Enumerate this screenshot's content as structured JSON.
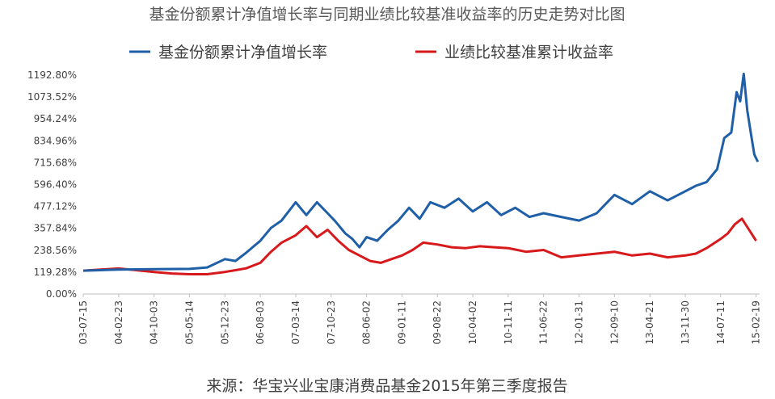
{
  "chart_data": {
    "type": "line",
    "title": "基金份额累计净值增长率与同期业绩比较基准收益率的历史走势对比图",
    "source": "来源：华宝兴业宝康消费品基金2015年第三季度报告",
    "y_ticks": [
      "0.00%",
      "119.28%",
      "238.56%",
      "357.84%",
      "477.12%",
      "596.40%",
      "715.68%",
      "834.96%",
      "954.24%",
      "1073.52%",
      "1192.80%"
    ],
    "ylim": [
      0,
      1192.8
    ],
    "x_ticks": [
      "03-07-15",
      "04-02-23",
      "04-10-03",
      "05-05-14",
      "05-12-23",
      "06-08-03",
      "07-03-14",
      "07-10-23",
      "08-06-02",
      "09-01-11",
      "09-08-22",
      "10-04-02",
      "10-11-11",
      "11-06-22",
      "12-01-31",
      "12-09-10",
      "13-04-21",
      "13-11-30",
      "14-07-11",
      "15-02-19"
    ],
    "xlim": [
      0,
      19.1
    ],
    "legend_position": "top-center",
    "series": [
      {
        "name": "基金份额累计净值增长率",
        "color": "#1f5fa8",
        "x": [
          0,
          1,
          2,
          3,
          3.5,
          4,
          4.3,
          4.6,
          5,
          5.3,
          5.6,
          6,
          6.3,
          6.6,
          6.9,
          7.1,
          7.4,
          7.6,
          7.8,
          8.0,
          8.3,
          8.6,
          8.9,
          9.2,
          9.5,
          9.8,
          10.2,
          10.6,
          11.0,
          11.4,
          11.8,
          12.2,
          12.6,
          13.0,
          13.5,
          14.0,
          14.5,
          15.0,
          15.5,
          16.0,
          16.5,
          17.0,
          17.3,
          17.6,
          17.9,
          18.1,
          18.3,
          18.45,
          18.55,
          18.65,
          18.75,
          18.85,
          18.95,
          19.05
        ],
        "y": [
          127,
          133,
          135,
          137,
          145,
          190,
          180,
          225,
          290,
          360,
          400,
          500,
          430,
          500,
          440,
          400,
          330,
          300,
          255,
          310,
          290,
          350,
          400,
          470,
          410,
          500,
          470,
          520,
          450,
          500,
          430,
          470,
          420,
          440,
          420,
          400,
          440,
          540,
          490,
          560,
          510,
          560,
          590,
          610,
          680,
          850,
          880,
          1100,
          1050,
          1200,
          1000,
          880,
          760,
          720
        ]
      },
      {
        "name": "业绩比较基准累计收益率",
        "color": "#d7191c",
        "x": [
          0,
          1,
          2,
          2.5,
          3,
          3.5,
          4,
          4.3,
          4.6,
          5,
          5.3,
          5.6,
          6,
          6.3,
          6.6,
          6.9,
          7.2,
          7.5,
          7.8,
          8.1,
          8.4,
          8.7,
          9.0,
          9.3,
          9.6,
          10.0,
          10.4,
          10.8,
          11.2,
          11.6,
          12.0,
          12.5,
          13.0,
          13.5,
          14.0,
          14.5,
          15.0,
          15.5,
          16.0,
          16.5,
          17.0,
          17.3,
          17.6,
          18.0,
          18.2,
          18.4,
          18.6,
          18.8,
          19.0
        ],
        "y": [
          127,
          139,
          120,
          112,
          108,
          108,
          120,
          130,
          140,
          170,
          230,
          280,
          320,
          370,
          310,
          350,
          290,
          240,
          210,
          180,
          170,
          190,
          210,
          240,
          280,
          270,
          255,
          250,
          260,
          255,
          250,
          230,
          240,
          200,
          210,
          220,
          230,
          210,
          220,
          200,
          210,
          220,
          250,
          300,
          330,
          380,
          410,
          350,
          290
        ]
      }
    ]
  }
}
